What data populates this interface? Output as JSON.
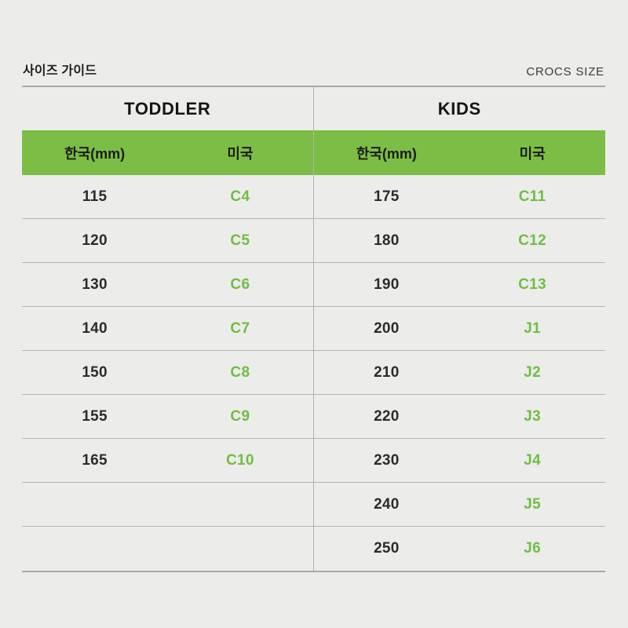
{
  "header": {
    "title": "사이즈 가이드",
    "brand": "CROCS SIZE"
  },
  "table": {
    "sections": [
      {
        "name": "TODDLER",
        "col_headers": [
          "한국(mm)",
          "미국"
        ],
        "rows": [
          [
            "115",
            "C4"
          ],
          [
            "120",
            "C5"
          ],
          [
            "130",
            "C6"
          ],
          [
            "140",
            "C7"
          ],
          [
            "150",
            "C8"
          ],
          [
            "155",
            "C9"
          ],
          [
            "165",
            "C10"
          ],
          [
            "",
            ""
          ],
          [
            "",
            ""
          ]
        ]
      },
      {
        "name": "KIDS",
        "col_headers": [
          "한국(mm)",
          "미국"
        ],
        "rows": [
          [
            "175",
            "C11"
          ],
          [
            "180",
            "C12"
          ],
          [
            "190",
            "C13"
          ],
          [
            "200",
            "J1"
          ],
          [
            "210",
            "J2"
          ],
          [
            "220",
            "J3"
          ],
          [
            "230",
            "J4"
          ],
          [
            "240",
            "J5"
          ],
          [
            "250",
            "J6"
          ]
        ]
      }
    ]
  },
  "colors": {
    "background": "#ECECEA",
    "accent_green": "#7CBE45",
    "green_text": "#6FBE44",
    "dark_text": "#1E1E1C",
    "divider_line": "#B3B3B1"
  }
}
